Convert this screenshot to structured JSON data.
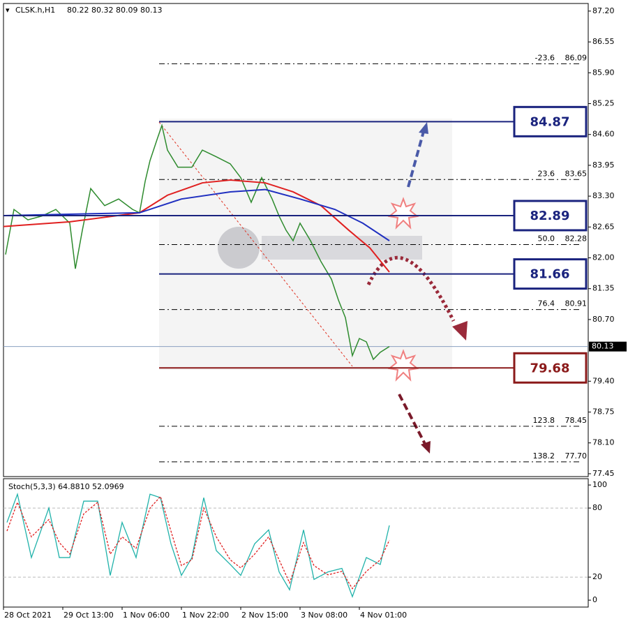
{
  "chart_data": {
    "type": "line",
    "title": "CLSK.h,H1",
    "ohlc_label": "80.22 80.32 80.09 80.13",
    "xlim": [
      0,
      167.6
    ],
    "ylim": [
      77.39,
      87.36
    ],
    "xticks": [
      {
        "value": 0,
        "label": "28 Oct 2021"
      },
      {
        "value": 17,
        "label": "29 Oct 13:00"
      },
      {
        "value": 34,
        "label": "1 Nov 06:00"
      },
      {
        "value": 51,
        "label": "1 Nov 22:00"
      },
      {
        "value": 68,
        "label": "2 Nov 15:00"
      },
      {
        "value": 85,
        "label": "3 Nov 08:00"
      },
      {
        "value": 102,
        "label": "4 Nov 01:00"
      }
    ],
    "yticks": [
      {
        "value": 87.2,
        "label": "87.20"
      },
      {
        "value": 86.55,
        "label": "86.55"
      },
      {
        "value": 85.9,
        "label": "85.90"
      },
      {
        "value": 85.25,
        "label": "85.25"
      },
      {
        "value": 84.6,
        "label": "84.60"
      },
      {
        "value": 83.95,
        "label": "83.95"
      },
      {
        "value": 83.3,
        "label": "83.30"
      },
      {
        "value": 82.65,
        "label": "82.65"
      },
      {
        "value": 82.0,
        "label": "82.00"
      },
      {
        "value": 81.35,
        "label": "81.35"
      },
      {
        "value": 80.7,
        "label": "80.70"
      },
      {
        "value": 79.4,
        "label": "79.40"
      },
      {
        "value": 78.75,
        "label": "78.75"
      },
      {
        "value": 78.1,
        "label": "78.10"
      },
      {
        "value": 77.45,
        "label": "77.45"
      }
    ],
    "current_price": 80.13,
    "series": [
      {
        "name": "Close",
        "color": "#2e8b2e",
        "x": [
          0.6,
          3,
          7,
          11,
          15,
          19,
          20.6,
          22.6,
          25,
          29,
          33,
          37,
          39,
          40.6,
          42,
          44,
          45.4,
          47,
          50,
          54,
          57,
          61,
          65,
          68,
          71,
          74,
          77,
          79,
          81,
          83,
          85,
          88,
          91,
          94,
          96,
          98,
          100,
          102,
          104,
          106,
          108,
          110.6
        ],
        "values": [
          82.07,
          83.02,
          82.8,
          82.88,
          83.02,
          82.73,
          81.77,
          82.58,
          83.46,
          83.1,
          83.24,
          83.02,
          82.95,
          83.61,
          84.05,
          84.49,
          84.79,
          84.27,
          83.91,
          83.91,
          84.27,
          84.13,
          83.98,
          83.69,
          83.17,
          83.69,
          83.24,
          82.88,
          82.58,
          82.36,
          82.73,
          82.36,
          81.92,
          81.55,
          81.11,
          80.74,
          79.94,
          80.3,
          80.23,
          79.86,
          80.01,
          80.13
        ]
      },
      {
        "name": "MA fast",
        "color": "#e02020",
        "x": [
          0,
          19,
          39,
          47,
          57,
          65,
          75,
          83,
          91,
          99,
          105,
          110.6
        ],
        "values": [
          82.66,
          82.76,
          82.95,
          83.32,
          83.58,
          83.64,
          83.58,
          83.39,
          83.1,
          82.58,
          82.21,
          81.7
        ]
      },
      {
        "name": "MA slow",
        "color": "#2030c0",
        "x": [
          0,
          39,
          51,
          65,
          75,
          85,
          95,
          103,
          110.6
        ],
        "values": [
          82.89,
          82.95,
          83.24,
          83.39,
          83.44,
          83.24,
          83.02,
          82.73,
          82.36
        ]
      }
    ],
    "levels": [
      {
        "value": 84.87,
        "color": "#1a237e"
      },
      {
        "value": 82.89,
        "color": "#1a237e"
      },
      {
        "value": 81.66,
        "color": "#1a237e"
      },
      {
        "value": 79.68,
        "color": "#8b1a1a"
      }
    ],
    "fibonacci": [
      {
        "ratio": "-23.6",
        "price": {
          "value": 86.09,
          "label": "86.09"
        }
      },
      {
        "ratio": "23.6",
        "price": {
          "value": 83.65,
          "label": "83.65"
        }
      },
      {
        "ratio": "50.0",
        "price": {
          "value": 82.28,
          "label": "82.28"
        }
      },
      {
        "ratio": "76.4",
        "price": {
          "value": 80.91,
          "label": "80.91"
        }
      },
      {
        "ratio": "123.8",
        "price": {
          "value": 78.45,
          "label": "78.45"
        }
      },
      {
        "ratio": "138.2",
        "price": {
          "value": 77.7,
          "label": "77.70"
        }
      }
    ],
    "stochastic": {
      "title": "Stoch(5,3,3) 64.8810 52.0969",
      "ylim": [
        -6,
        105.5
      ],
      "yticks": [
        100,
        80,
        20,
        0
      ],
      "levels": [
        80,
        20
      ],
      "series": [
        {
          "name": "Main",
          "color": "#20b2aa",
          "x": [
            1,
            4,
            8,
            13,
            16,
            19,
            23,
            27,
            30.6,
            34,
            38,
            42,
            45,
            48,
            51,
            54,
            57.4,
            61,
            65,
            68,
            72,
            76,
            79,
            82,
            86,
            89,
            93,
            97,
            100,
            104,
            108,
            110.6
          ],
          "values": [
            67.5,
            92,
            37,
            80,
            37,
            37,
            86,
            86,
            21.5,
            67.5,
            37,
            92,
            89,
            49,
            21.5,
            37,
            89,
            43,
            31,
            21.5,
            49,
            61,
            24.5,
            9,
            61,
            18,
            24.5,
            27.6,
            3,
            37,
            31,
            64.9
          ]
        },
        {
          "name": "Signal",
          "color": "#e02020",
          "x": [
            1,
            4,
            8,
            13,
            16,
            19,
            23,
            27,
            30.6,
            34,
            38,
            42,
            45,
            48,
            51,
            54,
            57.4,
            61,
            65,
            68,
            72,
            76,
            79,
            82,
            86,
            89,
            93,
            97,
            100,
            104,
            108,
            110.6
          ],
          "values": [
            60,
            85,
            55,
            70,
            50,
            40,
            75,
            85,
            40,
            55,
            45,
            80,
            90,
            60,
            30,
            35,
            80,
            55,
            35,
            28,
            40,
            55,
            35,
            15,
            50,
            30,
            22,
            25,
            10,
            25,
            35,
            52.1
          ]
        }
      ]
    }
  }
}
